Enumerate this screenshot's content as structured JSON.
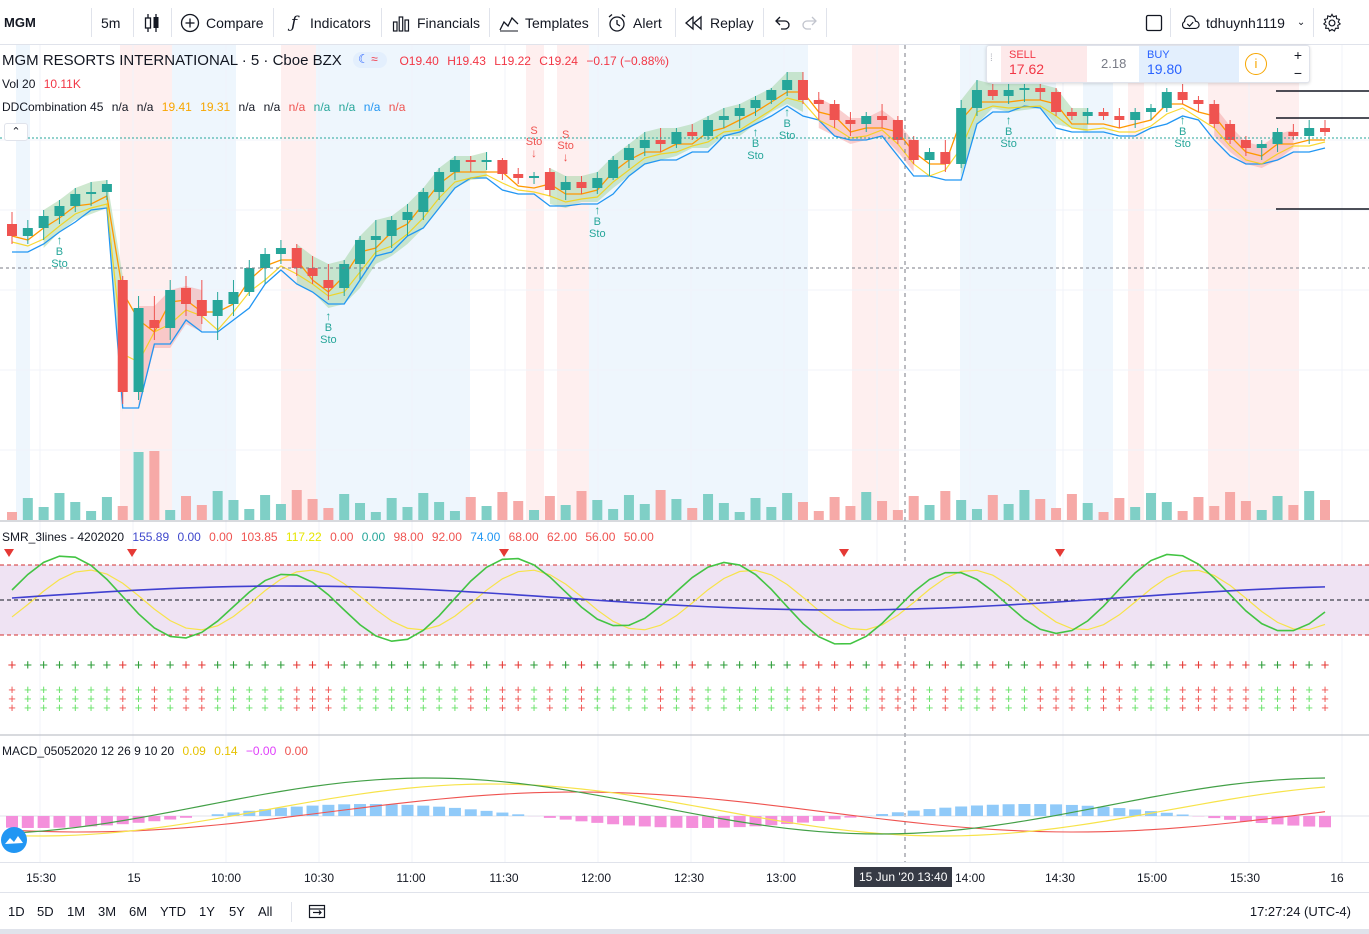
{
  "toolbar": {
    "symbol": "MGM",
    "interval": "5m",
    "compare": "Compare",
    "indicators": "Indicators",
    "financials": "Financials",
    "templates": "Templates",
    "alert": "Alert",
    "replay": "Replay",
    "username": "tdhuynh1119"
  },
  "legend": {
    "title": "MGM RESORTS INTERNATIONAL · 5 · Cboe BZX",
    "ohlc": {
      "o": "O19.40",
      "h": "H19.43",
      "l": "L19.22",
      "c": "C19.24",
      "chg": "−0.17 (−0.88%)"
    },
    "vol": {
      "name": "Vol 20",
      "value": "10.11K"
    },
    "ddc": {
      "name": "DDCombination 45",
      "values": [
        "n/a",
        "n/a",
        "19.41",
        "19.31",
        "n/a",
        "n/a",
        "n/a",
        "n/a",
        "n/a",
        "n/a",
        "n/a"
      ]
    },
    "smr": {
      "name": "SMR_3lines - 4202020",
      "values": [
        "155.89",
        "0.00",
        "0.00",
        "103.85",
        "117.22",
        "0.00",
        "0.00",
        "98.00",
        "92.00",
        "74.00",
        "68.00",
        "62.00",
        "56.00",
        "50.00"
      ]
    },
    "macd": {
      "name": "MACD_05052020 12 26 9 10 20",
      "values": [
        "0.09",
        "0.14",
        "−0.00",
        "0.00"
      ]
    }
  },
  "trade": {
    "sell_label": "SELL",
    "sell_price": "17.62",
    "spread": "2.18",
    "buy_label": "BUY",
    "buy_price": "19.80",
    "info": "i",
    "plus": "+",
    "minus": "−"
  },
  "signals": {
    "buy": "B",
    "sell": "S",
    "sto": "Sto"
  },
  "time_axis": {
    "ticks": [
      "15:30",
      "15",
      "10:00",
      "10:30",
      "11:00",
      "11:30",
      "12:00",
      "12:30",
      "13:00",
      "14:00",
      "14:30",
      "15:00",
      "15:30",
      "16"
    ],
    "crosshair_date": "15 Jun '20",
    "crosshair_time": "13:40"
  },
  "bottom": {
    "ranges": [
      "1D",
      "5D",
      "1M",
      "3M",
      "6M",
      "YTD",
      "1Y",
      "5Y",
      "All"
    ],
    "clock": "17:27:24 (UTC-4)"
  },
  "colors": {
    "up": "#26a69a",
    "down": "#ef5350",
    "accent": "#2962ff"
  },
  "chart_data": {
    "type": "candlestick",
    "symbol": "MGM",
    "interval": "5m",
    "candles": [
      [
        19.18,
        19.24,
        19.08,
        19.12
      ],
      [
        19.12,
        19.2,
        19.08,
        19.16
      ],
      [
        19.16,
        19.25,
        19.1,
        19.22
      ],
      [
        19.22,
        19.3,
        19.18,
        19.27
      ],
      [
        19.27,
        19.36,
        19.24,
        19.33
      ],
      [
        19.33,
        19.39,
        19.27,
        19.34
      ],
      [
        19.34,
        19.4,
        19.3,
        19.38
      ],
      [
        18.9,
        18.92,
        18.28,
        18.34
      ],
      [
        18.34,
        18.82,
        18.3,
        18.76
      ],
      [
        18.7,
        18.82,
        18.6,
        18.66
      ],
      [
        18.66,
        18.9,
        18.6,
        18.85
      ],
      [
        18.86,
        18.92,
        18.72,
        18.78
      ],
      [
        18.8,
        18.9,
        18.68,
        18.72
      ],
      [
        18.72,
        18.84,
        18.6,
        18.8
      ],
      [
        18.78,
        18.9,
        18.72,
        18.84
      ],
      [
        18.84,
        19.0,
        18.82,
        18.96
      ],
      [
        18.96,
        19.06,
        18.88,
        19.03
      ],
      [
        19.03,
        19.1,
        18.98,
        19.06
      ],
      [
        19.06,
        19.08,
        18.92,
        18.96
      ],
      [
        18.96,
        19.02,
        18.88,
        18.92
      ],
      [
        18.9,
        18.98,
        18.8,
        18.86
      ],
      [
        18.86,
        19.0,
        18.82,
        18.98
      ],
      [
        18.98,
        19.12,
        18.9,
        19.1
      ],
      [
        19.1,
        19.2,
        19.02,
        19.12
      ],
      [
        19.12,
        19.22,
        19.06,
        19.2
      ],
      [
        19.2,
        19.28,
        19.12,
        19.24
      ],
      [
        19.24,
        19.36,
        19.2,
        19.34
      ],
      [
        19.34,
        19.46,
        19.3,
        19.44
      ],
      [
        19.44,
        19.52,
        19.4,
        19.5
      ],
      [
        19.5,
        19.52,
        19.44,
        19.49
      ],
      [
        19.49,
        19.54,
        19.45,
        19.5
      ],
      [
        19.5,
        19.51,
        19.4,
        19.43
      ],
      [
        19.43,
        19.46,
        19.38,
        19.41
      ],
      [
        19.41,
        19.44,
        19.38,
        19.42
      ],
      [
        19.44,
        19.46,
        19.32,
        19.35
      ],
      [
        19.35,
        19.42,
        19.3,
        19.39
      ],
      [
        19.39,
        19.42,
        19.33,
        19.36
      ],
      [
        19.36,
        19.44,
        19.33,
        19.41
      ],
      [
        19.41,
        19.52,
        19.4,
        19.5
      ],
      [
        19.5,
        19.58,
        19.46,
        19.56
      ],
      [
        19.56,
        19.64,
        19.52,
        19.6
      ],
      [
        19.6,
        19.66,
        19.54,
        19.58
      ],
      [
        19.58,
        19.66,
        19.56,
        19.64
      ],
      [
        19.64,
        19.68,
        19.6,
        19.62
      ],
      [
        19.62,
        19.72,
        19.6,
        19.7
      ],
      [
        19.7,
        19.76,
        19.66,
        19.72
      ],
      [
        19.72,
        19.78,
        19.66,
        19.76
      ],
      [
        19.76,
        19.82,
        19.72,
        19.8
      ],
      [
        19.8,
        19.86,
        19.78,
        19.85
      ],
      [
        19.85,
        19.94,
        19.82,
        19.9
      ],
      [
        19.9,
        19.94,
        19.78,
        19.8
      ],
      [
        19.8,
        19.84,
        19.7,
        19.78
      ],
      [
        19.78,
        19.8,
        19.66,
        19.7
      ],
      [
        19.7,
        19.74,
        19.62,
        19.68
      ],
      [
        19.68,
        19.74,
        19.64,
        19.72
      ],
      [
        19.72,
        19.78,
        19.66,
        19.7
      ],
      [
        19.7,
        19.72,
        19.58,
        19.6
      ],
      [
        19.6,
        19.62,
        19.48,
        19.5
      ],
      [
        19.5,
        19.56,
        19.42,
        19.54
      ],
      [
        19.54,
        19.6,
        19.44,
        19.48
      ],
      [
        19.48,
        19.8,
        19.46,
        19.76
      ],
      [
        19.76,
        19.9,
        19.72,
        19.85
      ],
      [
        19.85,
        19.88,
        19.8,
        19.82
      ],
      [
        19.82,
        19.88,
        19.78,
        19.85
      ],
      [
        19.85,
        19.88,
        19.79,
        19.86
      ],
      [
        19.86,
        19.88,
        19.8,
        19.84
      ],
      [
        19.84,
        19.86,
        19.72,
        19.74
      ],
      [
        19.74,
        19.76,
        19.7,
        19.72
      ],
      [
        19.72,
        19.76,
        19.68,
        19.74
      ],
      [
        19.74,
        19.76,
        19.7,
        19.72
      ],
      [
        19.72,
        19.76,
        19.66,
        19.7
      ],
      [
        19.7,
        19.76,
        19.66,
        19.74
      ],
      [
        19.74,
        19.78,
        19.7,
        19.76
      ],
      [
        19.76,
        19.86,
        19.74,
        19.84
      ],
      [
        19.84,
        19.88,
        19.78,
        19.8
      ],
      [
        19.8,
        19.82,
        19.74,
        19.78
      ],
      [
        19.78,
        19.8,
        19.66,
        19.68
      ],
      [
        19.68,
        19.7,
        19.58,
        19.6
      ],
      [
        19.6,
        19.62,
        19.52,
        19.56
      ],
      [
        19.56,
        19.6,
        19.5,
        19.58
      ],
      [
        19.58,
        19.66,
        19.54,
        19.64
      ],
      [
        19.64,
        19.68,
        19.6,
        19.62
      ],
      [
        19.62,
        19.7,
        19.58,
        19.66
      ],
      [
        19.66,
        19.7,
        19.62,
        19.64
      ]
    ],
    "volume_series": "Vol 20",
    "panes": [
      "price",
      "SMR_3lines - 4202020",
      "MACD_05052020 12 26 9 10 20"
    ]
  }
}
